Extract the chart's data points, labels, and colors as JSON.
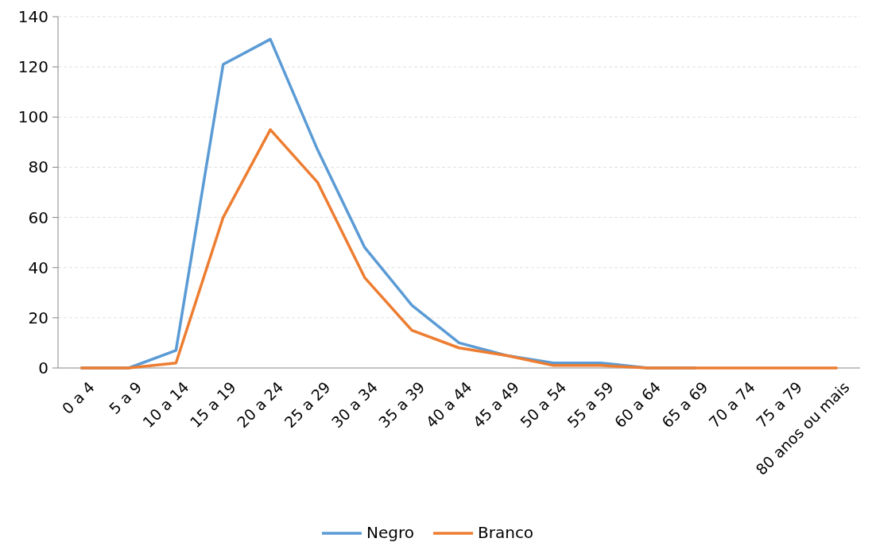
{
  "chart_data": {
    "type": "line",
    "categories": [
      "0 a 4",
      "5 a 9",
      "10 a 14",
      "15 a 19",
      "20 a 24",
      "25 a 29",
      "30 a 34",
      "35 a 39",
      "40 a 44",
      "45 a 49",
      "50 a 54",
      "55 a 59",
      "60 a 64",
      "65 a 69",
      "70 a 74",
      "75 a 79",
      "80 anos ou mais"
    ],
    "series": [
      {
        "name": "Negro",
        "color": "#5b9bd5",
        "values": [
          0,
          0,
          7,
          121,
          131,
          87,
          48,
          25,
          10,
          5,
          2,
          2,
          0,
          0,
          null,
          null,
          null
        ]
      },
      {
        "name": "Branco",
        "color": "#ed7d31",
        "values": [
          0,
          0,
          2,
          60,
          95,
          74,
          36,
          15,
          8,
          5,
          1,
          1,
          0,
          0,
          0,
          0,
          0
        ]
      }
    ],
    "ylim": [
      0,
      140
    ],
    "yticks": [
      0,
      20,
      40,
      60,
      80,
      100,
      120,
      140
    ],
    "grid": "y",
    "legend": "bottom"
  }
}
